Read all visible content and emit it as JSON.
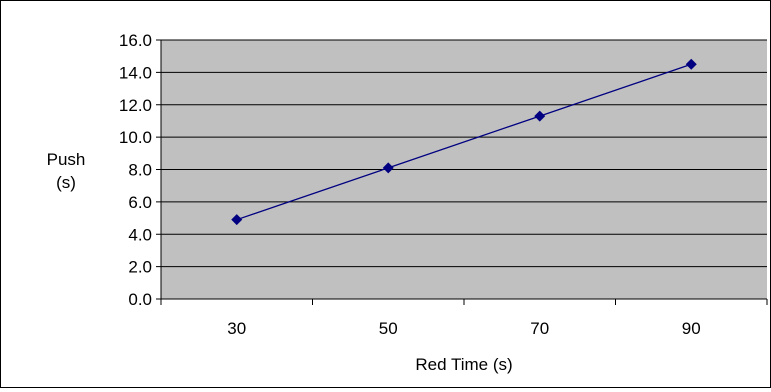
{
  "chart_data": {
    "type": "line",
    "title": "",
    "xlabel": "Red Time (s)",
    "ylabel": [
      "Push",
      "(s)"
    ],
    "categories": [
      "30",
      "50",
      "70",
      "90"
    ],
    "series": [
      {
        "values": [
          4.9,
          8.1,
          11.3,
          14.5
        ],
        "color": "#000080"
      }
    ],
    "ylim": [
      0,
      16
    ],
    "y_ticks": [
      "0.0",
      "2.0",
      "4.0",
      "6.0",
      "8.0",
      "10.0",
      "12.0",
      "14.0",
      "16.0"
    ],
    "grid": true,
    "legend": "none",
    "marker": "diamond",
    "colors": {
      "plot_background": "#c0c0c0",
      "gridline": "#000000",
      "series_line": "#000080",
      "page_background": "#ffffff"
    }
  }
}
